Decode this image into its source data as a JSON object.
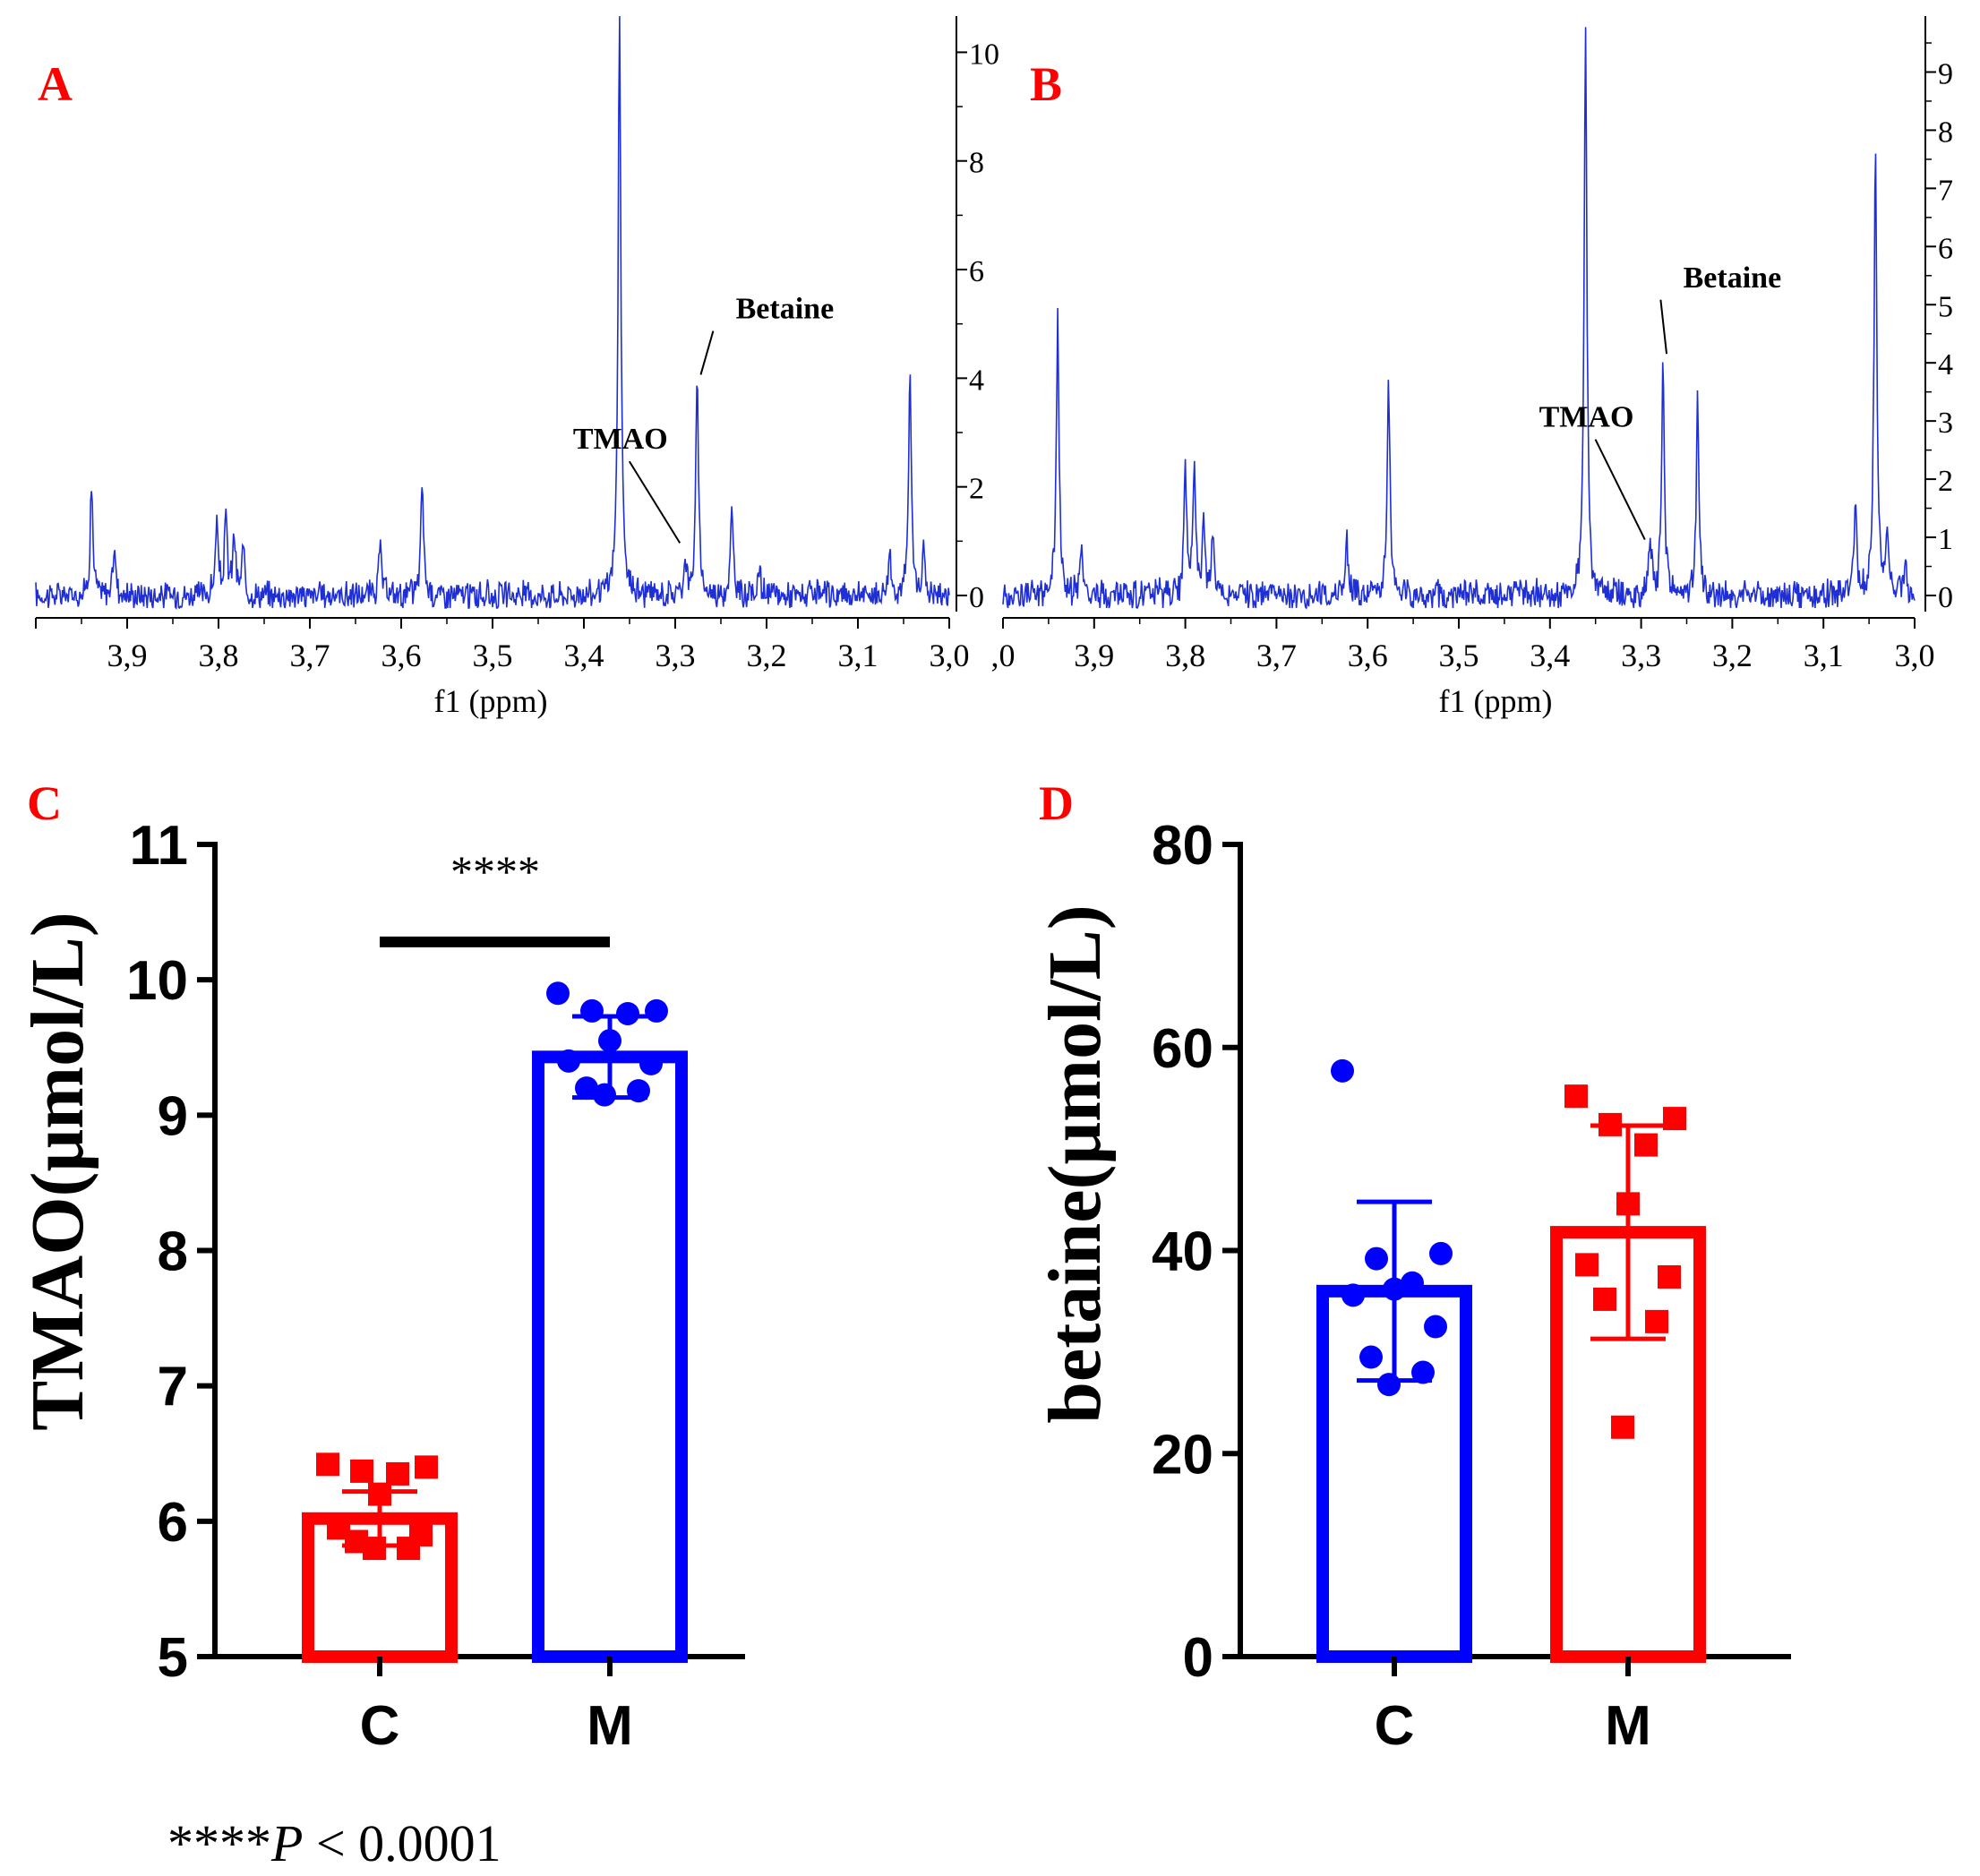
{
  "figure": {
    "footnote_stars": "****",
    "footnote_p": "P",
    "footnote_rest": " < 0.0001"
  },
  "colors": {
    "red": "#ff0000",
    "blue": "#0000ff",
    "spectrum": "#1f2fd6",
    "black": "#000000"
  },
  "chart_data": [
    {
      "panel": "A",
      "type": "line",
      "xlabel": "f1 (ppm)",
      "x_ticks": [
        "3.9",
        "3.8",
        "3.7",
        "3.6",
        "3.5",
        "3.4",
        "3.3",
        "3.2",
        "3.1",
        "3.0"
      ],
      "xlim": [
        4.0,
        3.0
      ],
      "x_reversed": true,
      "y_ticks": [
        "0",
        "2",
        "4",
        "6",
        "8",
        "10"
      ],
      "ylim": [
        -0.3,
        10.6
      ],
      "annotations": [
        {
          "label": "TMAO",
          "ppm": 3.289,
          "label_ppm": 3.36,
          "label_y": 2.7
        },
        {
          "label": "Betaine",
          "ppm": 3.276,
          "label_ppm": 3.18,
          "label_y": 5.1
        }
      ],
      "peaks": [
        {
          "ppm": 3.939,
          "h": 2.0
        },
        {
          "ppm": 3.914,
          "h": 0.9
        },
        {
          "ppm": 3.802,
          "h": 1.3
        },
        {
          "ppm": 3.792,
          "h": 1.4
        },
        {
          "ppm": 3.783,
          "h": 1.1
        },
        {
          "ppm": 3.773,
          "h": 0.8
        },
        {
          "ppm": 3.623,
          "h": 0.9
        },
        {
          "ppm": 3.577,
          "h": 2.1
        },
        {
          "ppm": 3.361,
          "h": 10.6
        },
        {
          "ppm": 3.289,
          "h": 0.7
        },
        {
          "ppm": 3.276,
          "h": 3.9
        },
        {
          "ppm": 3.238,
          "h": 1.5
        },
        {
          "ppm": 3.208,
          "h": 0.5
        },
        {
          "ppm": 3.065,
          "h": 0.8
        },
        {
          "ppm": 3.043,
          "h": 4.0
        },
        {
          "ppm": 3.028,
          "h": 0.8
        }
      ]
    },
    {
      "panel": "B",
      "type": "line",
      "xlabel": "f1 (ppm)",
      "x_ticks": [
        ".0",
        "3.9",
        "3.8",
        "3.7",
        "3.6",
        "3.5",
        "3.4",
        "3.3",
        "3.2",
        "3.1",
        "3.0"
      ],
      "xlim": [
        4.0,
        3.0
      ],
      "x_reversed": true,
      "y_ticks": [
        "0",
        "1",
        "2",
        "3",
        "4",
        "5",
        "6",
        "7",
        "8",
        "9"
      ],
      "ylim": [
        -0.3,
        9.9
      ],
      "annotations": [
        {
          "label": "TMAO",
          "ppm": 3.29,
          "label_ppm": 3.36,
          "label_y": 2.9
        },
        {
          "label": "Betaine",
          "ppm": 3.276,
          "label_ppm": 3.2,
          "label_y": 5.3
        }
      ],
      "peaks": [
        {
          "ppm": 3.94,
          "h": 4.8
        },
        {
          "ppm": 3.914,
          "h": 0.8
        },
        {
          "ppm": 3.8,
          "h": 2.1
        },
        {
          "ppm": 3.79,
          "h": 2.3
        },
        {
          "ppm": 3.78,
          "h": 1.1
        },
        {
          "ppm": 3.77,
          "h": 1.0
        },
        {
          "ppm": 3.623,
          "h": 1.0
        },
        {
          "ppm": 3.577,
          "h": 3.7
        },
        {
          "ppm": 3.361,
          "h": 9.9
        },
        {
          "ppm": 3.29,
          "h": 0.9
        },
        {
          "ppm": 3.276,
          "h": 4.0
        },
        {
          "ppm": 3.238,
          "h": 3.3
        },
        {
          "ppm": 3.065,
          "h": 1.5
        },
        {
          "ppm": 3.043,
          "h": 7.7
        },
        {
          "ppm": 3.03,
          "h": 1.0
        },
        {
          "ppm": 3.01,
          "h": 0.7
        }
      ]
    },
    {
      "panel": "C",
      "type": "bar",
      "ylabel": "TMAO(μmol/L)",
      "categories": [
        "C",
        "M"
      ],
      "ylim": [
        5,
        11
      ],
      "y_ticks": [
        "5",
        "6",
        "7",
        "8",
        "9",
        "10",
        "11"
      ],
      "series": [
        {
          "category": "C",
          "color": "#ff0000",
          "marker": "square",
          "mean": 6.02,
          "sd": 0.2,
          "points": [
            6.42,
            6.4,
            6.37,
            6.35,
            6.2,
            5.95,
            5.9,
            5.85,
            5.8,
            5.8
          ]
        },
        {
          "category": "M",
          "color": "#0000ff",
          "marker": "circle",
          "mean": 9.43,
          "sd": 0.3,
          "points": [
            9.9,
            9.77,
            9.77,
            9.75,
            9.55,
            9.4,
            9.38,
            9.2,
            9.18,
            9.15
          ]
        }
      ],
      "significance": {
        "label": "****",
        "y": 10.28
      }
    },
    {
      "panel": "D",
      "type": "bar",
      "ylabel": "betaine(μmol/L)",
      "categories": [
        "C",
        "M"
      ],
      "ylim": [
        0,
        80
      ],
      "y_ticks": [
        "0",
        "20",
        "40",
        "60",
        "80"
      ],
      "series": [
        {
          "category": "C",
          "color": "#0000ff",
          "marker": "circle",
          "mean": 36.0,
          "sd": 8.8,
          "points": [
            57.7,
            39.7,
            39.2,
            36.8,
            36.2,
            35.6,
            32.5,
            29.5,
            28.0,
            26.8
          ]
        },
        {
          "category": "M",
          "color": "#ff0000",
          "marker": "square",
          "mean": 41.8,
          "sd": 10.5,
          "points": [
            55.2,
            53.0,
            52.4,
            50.4,
            44.6,
            38.6,
            37.4,
            35.2,
            33.0,
            22.6
          ]
        }
      ]
    }
  ]
}
